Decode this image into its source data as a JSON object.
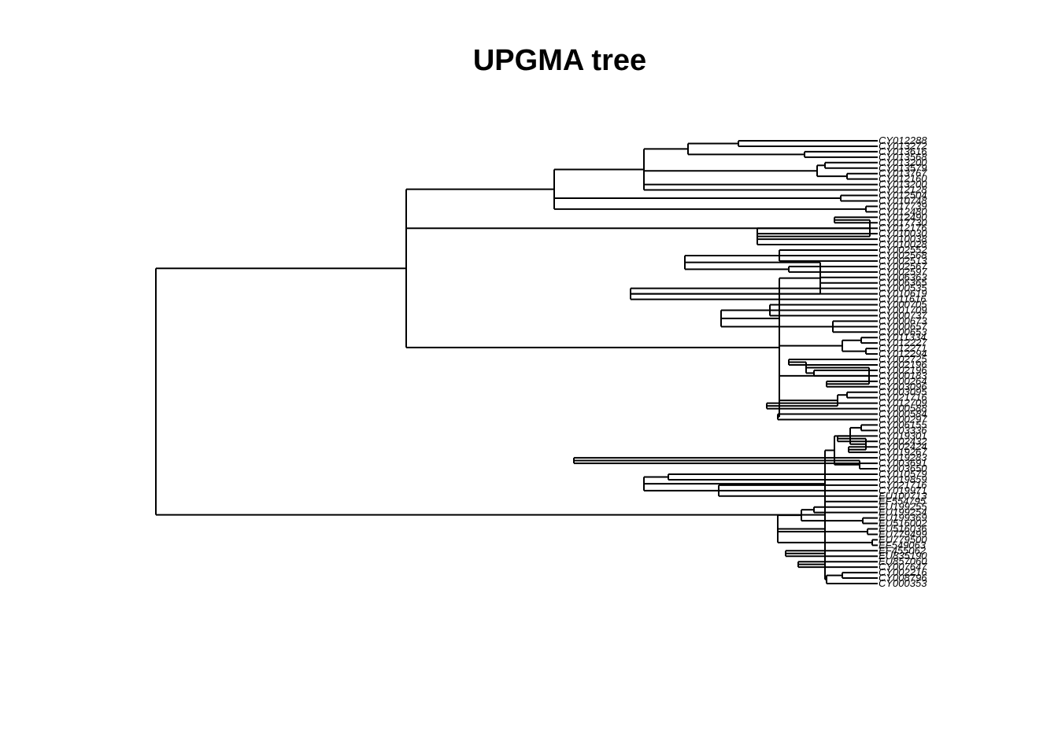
{
  "title": "UPGMA tree",
  "tips": [
    "CY012288",
    "CY013272",
    "CY013616",
    "CY013568",
    "CY013200",
    "CY013579",
    "CY013767",
    "CY012160",
    "CY013200",
    "CY012128",
    "CY012504",
    "CY010748",
    "CY017739",
    "CY012480",
    "CY012490",
    "CY017730",
    "CY012176",
    "CY010030",
    "CY010038",
    "CY010028",
    "CY002552",
    "CY002568",
    "CY002513",
    "CY002567",
    "CY002597",
    "CY006363",
    "CY006365",
    "CY000535",
    "CY010619",
    "CY011616",
    "CY000705",
    "CY001709",
    "CY000737",
    "CY000673",
    "CY000657",
    "CY000653",
    "CY011334",
    "CY012227",
    "CY012271",
    "CY012294",
    "CY002725",
    "CY002196",
    "CY002196",
    "CY000183",
    "CY000264",
    "CY003096",
    "CY003095",
    "CY021716",
    "CY012709",
    "CY000588",
    "CY000584",
    "CY000297",
    "CY006155",
    "CY003336",
    "CY019301",
    "CY002432",
    "CY002424",
    "CY019267",
    "CY019283",
    "CY003691",
    "CY003650",
    "CY010579",
    "CY019859",
    "CY021716",
    "CY019971",
    "EU100713",
    "EF554795",
    "EU199255",
    "EU199254",
    "EU199369",
    "EU516002",
    "EU516036",
    "EU779499",
    "EU779500",
    "EF549063",
    "EF455062",
    "EU835190",
    "EU857060",
    "CY007647",
    "CY002216",
    "CY008796",
    "CY000353"
  ]
}
